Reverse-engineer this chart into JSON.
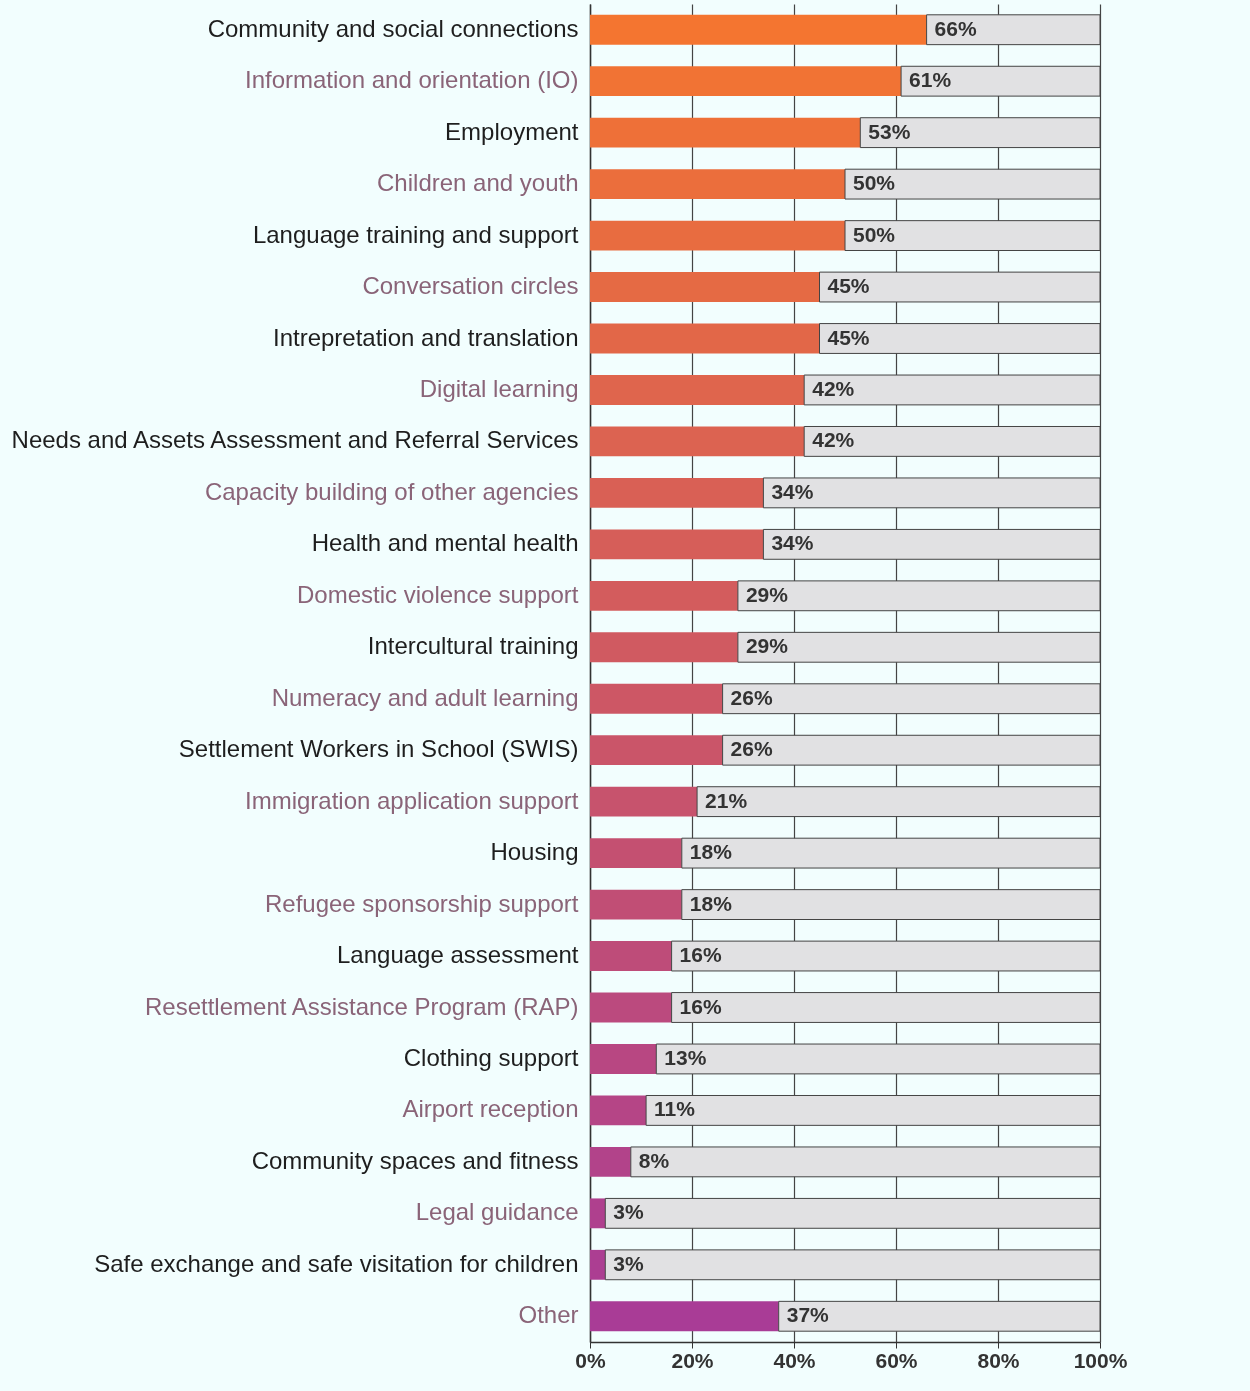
{
  "chart_data": {
    "type": "bar",
    "orientation": "horizontal",
    "stacked": true,
    "grid": "x",
    "categories": [
      "Community and social connections",
      "Information and orientation (IO)",
      "Employment",
      "Children and youth",
      "Language training and support",
      "Conversation circles",
      "Intrepretation and translation",
      "Digital learning",
      "Needs and Assets Assessment and Referral Services",
      "Capacity building of other agencies",
      "Health and mental health",
      "Domestic violence support",
      "Intercultural training",
      "Numeracy and adult learning",
      "Settlement Workers in School (SWIS)",
      "Immigration application support",
      "Housing",
      "Refugee sponsorship support",
      "Language assessment",
      "Resettlement Assistance Program (RAP)",
      "Clothing support",
      "Airport reception",
      "Community spaces and fitness",
      "Legal guidance",
      "Safe exchange and safe visitation for children",
      "Other"
    ],
    "series": [
      {
        "colors": [
          "#f47530",
          "#f17334",
          "#ee7038",
          "#eb6e3c",
          "#e86c40",
          "#e56a44",
          "#e26748",
          "#df654d",
          "#dc6351",
          "#d96055",
          "#d65e59",
          "#d35c5d",
          "#d05a61",
          "#cd5765",
          "#ca5569",
          "#c7536d",
          "#c45071",
          "#c14e75",
          "#be4c79",
          "#bb4a7e",
          "#b84782",
          "#b54586",
          "#b2438a",
          "#af408e",
          "#ac3e92",
          "#a93c96"
        ],
        "values": [
          66,
          61,
          53,
          50,
          50,
          45,
          45,
          42,
          42,
          34,
          34,
          29,
          29,
          26,
          26,
          21,
          18,
          18,
          16,
          16,
          13,
          11,
          8,
          3,
          3,
          37
        ],
        "value_labels": [
          "66%",
          "61%",
          "53%",
          "50%",
          "50%",
          "45%",
          "45%",
          "42%",
          "42%",
          "34%",
          "34%",
          "29%",
          "29%",
          "26%",
          "26%",
          "21%",
          "18%",
          "18%",
          "16%",
          "16%",
          "13%",
          "11%",
          "8%",
          "3%",
          "3%",
          "37%"
        ]
      },
      {
        "color": "#e1e1e3",
        "values": [
          34,
          39,
          47,
          50,
          50,
          55,
          55,
          58,
          58,
          66,
          66,
          71,
          71,
          74,
          74,
          79,
          82,
          82,
          84,
          84,
          87,
          89,
          92,
          97,
          97,
          63
        ]
      }
    ],
    "xlim": [
      0,
      100
    ],
    "xticks": [
      {
        "value": 0,
        "label": "0%"
      },
      {
        "value": 20,
        "label": "20%"
      },
      {
        "value": 40,
        "label": "40%"
      },
      {
        "value": 60,
        "label": "60%"
      },
      {
        "value": 80,
        "label": "80%"
      },
      {
        "value": 100,
        "label": "100%"
      }
    ]
  }
}
